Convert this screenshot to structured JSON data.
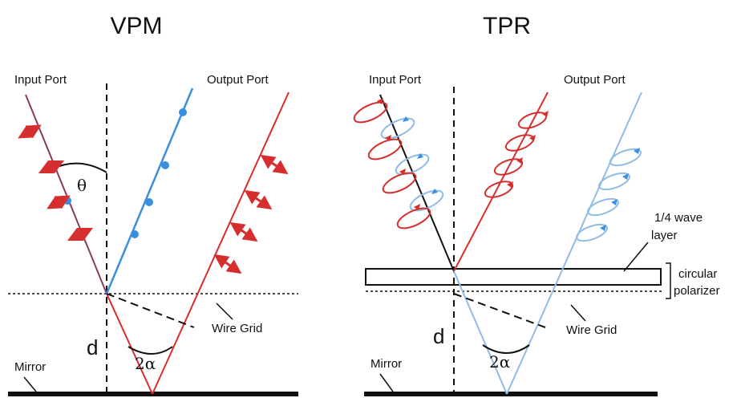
{
  "panels": [
    {
      "title": "VPM",
      "input_port": "Input Port",
      "output_port": "Output Port",
      "theta": "θ",
      "two_alpha": "2α",
      "d": "d",
      "wire_grid": "Wire Grid",
      "mirror": "Mirror"
    },
    {
      "title": "TPR",
      "input_port": "Input Port",
      "output_port": "Output Port",
      "two_alpha": "2α",
      "d": "d",
      "wire_grid": "Wire Grid",
      "mirror": "Mirror",
      "quarter_wave": "1/4 wave",
      "quarter_wave_2": "layer",
      "circular": "circular",
      "circular_2": "polarizer"
    }
  ],
  "colors": {
    "red": "#d62e2e",
    "blue": "#3a8fe0",
    "light_blue": "#8fbbe6",
    "black": "#111111"
  }
}
